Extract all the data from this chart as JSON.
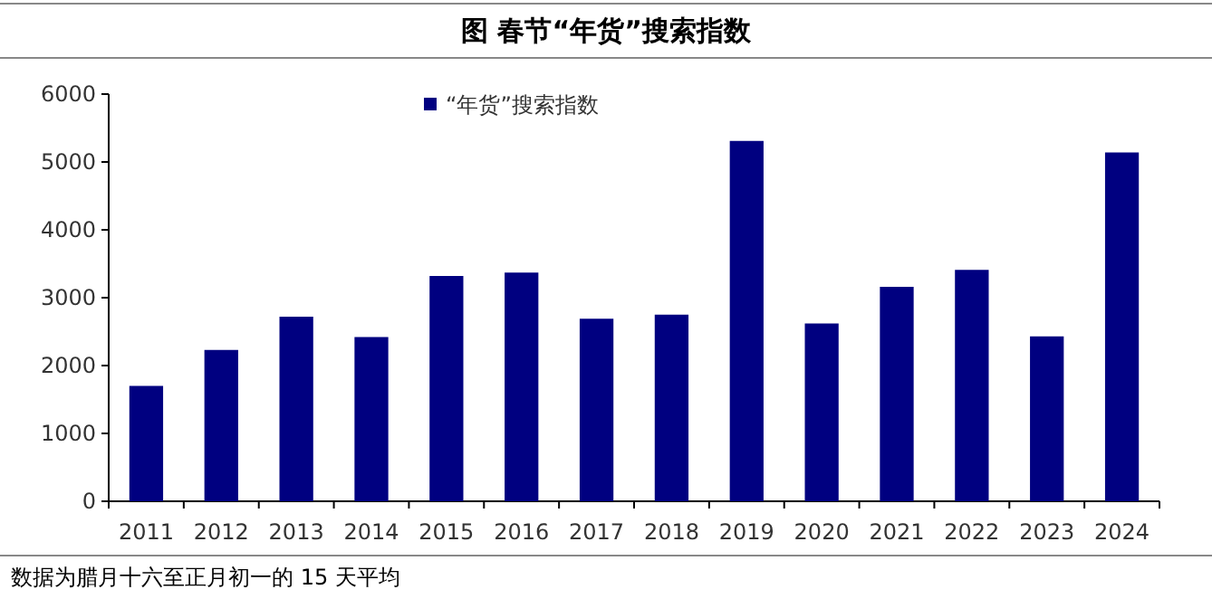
{
  "chart_data": {
    "type": "bar",
    "title": "图  春节“年货”搜索指数",
    "categories": [
      "2011",
      "2012",
      "2013",
      "2014",
      "2015",
      "2016",
      "2017",
      "2018",
      "2019",
      "2020",
      "2021",
      "2022",
      "2023",
      "2024"
    ],
    "series": [
      {
        "name": "“年货”搜索指数",
        "color": "#000080",
        "values": [
          1700,
          2230,
          2720,
          2420,
          3320,
          3370,
          2690,
          2750,
          5310,
          2620,
          3160,
          3410,
          2430,
          5140
        ]
      }
    ],
    "ylim": [
      0,
      6000
    ],
    "yticks": [
      0,
      1000,
      2000,
      3000,
      4000,
      5000,
      6000
    ],
    "legend": "top",
    "grid": false,
    "annotations": [
      "数据为腊月十六至正月初一的 15 天平均"
    ]
  }
}
